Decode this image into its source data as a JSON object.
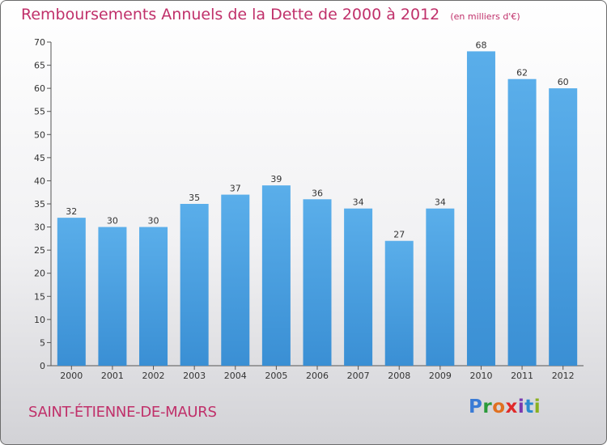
{
  "chart_data": {
    "type": "bar",
    "title": "Remboursements Annuels de la Dette de 2000 à 2012",
    "unit_label": "(en milliers d'€)",
    "categories": [
      "2000",
      "2001",
      "2002",
      "2003",
      "2004",
      "2005",
      "2006",
      "2007",
      "2008",
      "2009",
      "2010",
      "2011",
      "2012"
    ],
    "values": [
      32,
      30,
      30,
      35,
      37,
      39,
      36,
      34,
      27,
      34,
      68,
      62,
      60
    ],
    "ylim": [
      0,
      70
    ],
    "yticks": [
      0,
      5,
      10,
      15,
      20,
      25,
      30,
      35,
      40,
      45,
      50,
      55,
      60,
      65,
      70
    ],
    "grid": false,
    "bar_color": "#3a8fd4",
    "bar_color_light": "#5aaeea"
  },
  "footer": {
    "city": "SAINT-ÉTIENNE-DE-MAURS",
    "logo": {
      "letters": [
        "P",
        "r",
        "o",
        "x",
        "i",
        "t",
        "i"
      ],
      "colors": [
        "#3a7bd5",
        "#2a9a3a",
        "#e07020",
        "#e02a2a",
        "#7a3ab0",
        "#2a8ad0",
        "#8ab020"
      ]
    }
  }
}
